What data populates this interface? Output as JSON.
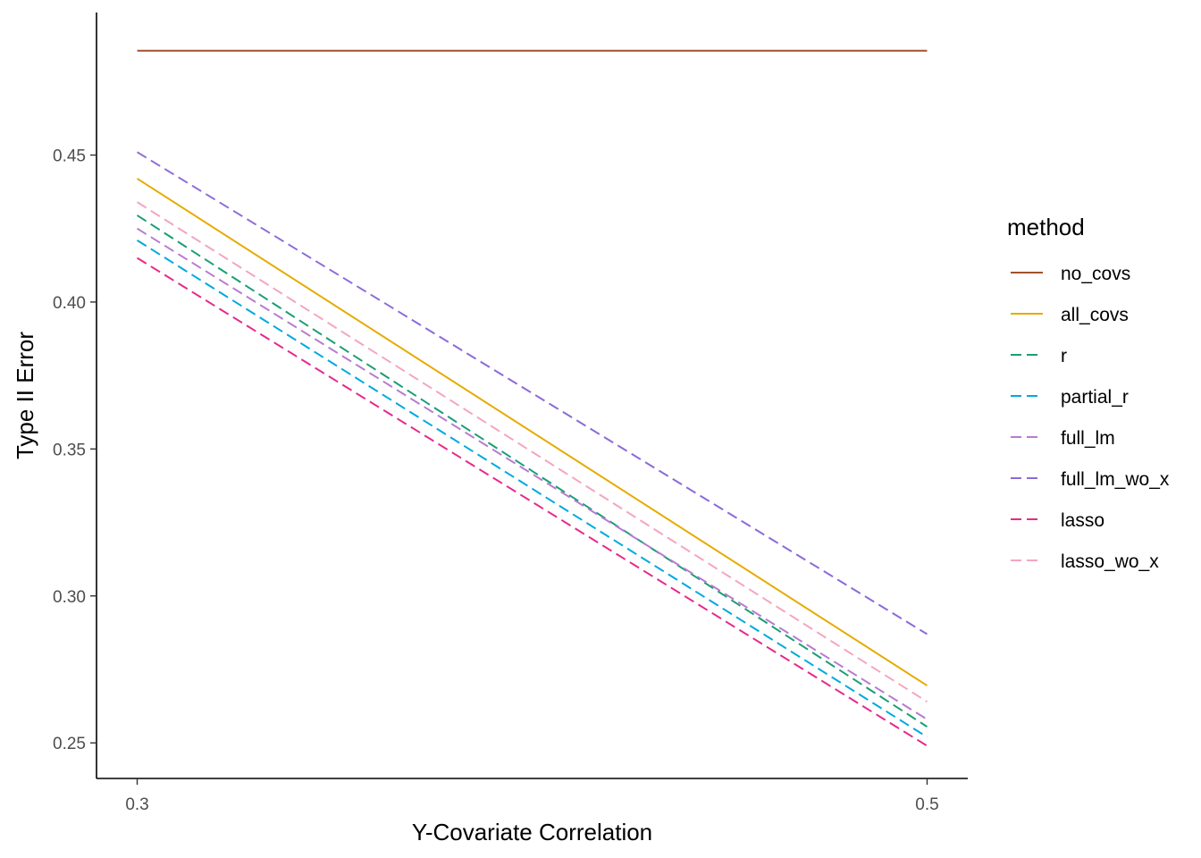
{
  "chart_data": {
    "type": "line",
    "xlabel": "Y-Covariate Correlation",
    "ylabel": "Type II Error",
    "x": [
      0.3,
      0.5
    ],
    "xlim": [
      0.2897,
      0.5103
    ],
    "ylim": [
      0.2379,
      0.4985
    ],
    "x_ticks": [
      0.3,
      0.5
    ],
    "x_tick_labels": [
      "0.3",
      "0.5"
    ],
    "y_ticks": [
      0.25,
      0.3,
      0.35,
      0.4,
      0.45
    ],
    "y_tick_labels": [
      "0.25",
      "0.30",
      "0.35",
      "0.40",
      "0.45"
    ],
    "grid": false,
    "legend": {
      "title": "method",
      "position": "right"
    },
    "series": [
      {
        "name": "no_covs",
        "values": [
          0.4855,
          0.4855
        ],
        "color": "#a0522d",
        "dash": "solid"
      },
      {
        "name": "all_covs",
        "values": [
          0.442,
          0.2695
        ],
        "color": "#e6ab02",
        "dash": "solid"
      },
      {
        "name": "r",
        "values": [
          0.4295,
          0.2555
        ],
        "color": "#1b9e77",
        "dash": "dashed"
      },
      {
        "name": "partial_r",
        "values": [
          0.421,
          0.252
        ],
        "color": "#00a9e0",
        "dash": "dashed"
      },
      {
        "name": "full_lm",
        "values": [
          0.425,
          0.258
        ],
        "color": "#b77bd1",
        "dash": "dashed"
      },
      {
        "name": "full_lm_wo_x",
        "values": [
          0.451,
          0.287
        ],
        "color": "#8c6bd9",
        "dash": "dashed"
      },
      {
        "name": "lasso",
        "values": [
          0.415,
          0.249
        ],
        "color": "#e7298a",
        "dash": "dashed"
      },
      {
        "name": "lasso_wo_x",
        "values": [
          0.434,
          0.264
        ],
        "color": "#f4a6c0",
        "dash": "dashed"
      }
    ]
  }
}
